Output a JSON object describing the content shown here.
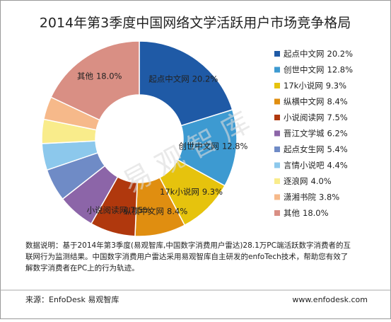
{
  "chart_data": {
    "type": "donut",
    "title": "2014年第3季度中国网络文学活跃用户市场竞争格局",
    "categories": [
      "起点中文网",
      "创世中文网",
      "17k小说网",
      "纵横中文网",
      "小说阅读网",
      "晋江文学城",
      "起点女生网",
      "言情小说吧",
      "逐浪网",
      "潇湘书院",
      "其他"
    ],
    "values": [
      20.2,
      12.8,
      9.3,
      8.4,
      7.5,
      6.2,
      5.4,
      4.4,
      4.0,
      3.8,
      18.0
    ],
    "value_labels": [
      "20.2%",
      "12.8%",
      "9.3%",
      "8.4%",
      "7.5%",
      "6.2%",
      "5.4%",
      "4.4%",
      "4.0%",
      "3.8%",
      "18.0%"
    ],
    "colors": [
      "#1f5aa6",
      "#3d9ad1",
      "#e6c30d",
      "#e08e10",
      "#b0380d",
      "#8c65a8",
      "#6f8bc6",
      "#8cc8ec",
      "#f9ec8b",
      "#f6b98a",
      "#d98f84"
    ],
    "legend": "right",
    "watermark": "易观智库",
    "note_lines": [
      "数据说明：基于2014年第3季度(易观智库,中国数字消费用户雷达)28.1万PC端活跃数字消费者的互",
      "联网行为监测结果。中国数字消费用户雷达采用易观智库自主研发的enfoTech技术，帮助您有效了",
      "解数字消费者在PC上的行为轨迹。"
    ],
    "source": "来源：EnfoDesk 易观智库",
    "website": "www.enfodesk.com"
  }
}
